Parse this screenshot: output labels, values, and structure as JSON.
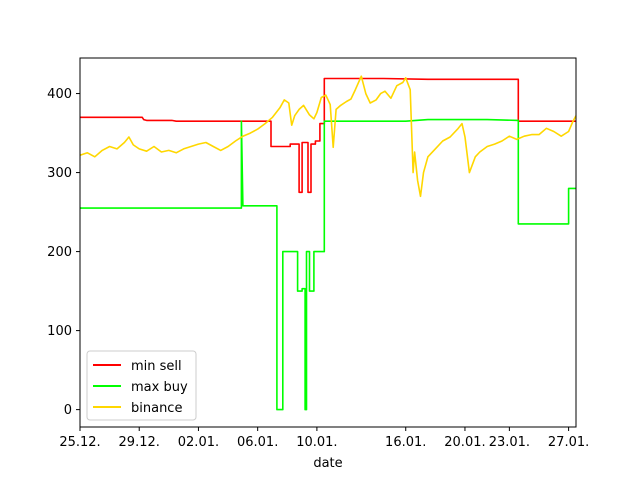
{
  "chart_data": {
    "type": "line",
    "xlabel": "date",
    "ylabel": "",
    "x_ticks": [
      "25.12.",
      "29.12.",
      "02.01.",
      "06.01.",
      "10.01.",
      "16.01.",
      "20.01.",
      "23.01.",
      "27.01."
    ],
    "x_tick_days": [
      0,
      4,
      8,
      12,
      16,
      22,
      26,
      29,
      33
    ],
    "xlim": [
      0,
      33.5
    ],
    "ylim": [
      -22,
      445
    ],
    "y_ticks": [
      0,
      100,
      200,
      300,
      400
    ],
    "grid": false,
    "legend_position": "lower-left",
    "series": [
      {
        "name": "min sell",
        "color": "#ff0000",
        "points": [
          [
            0,
            370
          ],
          [
            4.2,
            370
          ],
          [
            4.3,
            367
          ],
          [
            4.5,
            366
          ],
          [
            6.2,
            366
          ],
          [
            6.5,
            365
          ],
          [
            12.9,
            365
          ],
          [
            12.9,
            333
          ],
          [
            14.2,
            333
          ],
          [
            14.2,
            336
          ],
          [
            14.8,
            336
          ],
          [
            14.8,
            275
          ],
          [
            15.0,
            275
          ],
          [
            15.0,
            338
          ],
          [
            15.4,
            338
          ],
          [
            15.4,
            275
          ],
          [
            15.6,
            275
          ],
          [
            15.6,
            336
          ],
          [
            15.9,
            336
          ],
          [
            15.9,
            340
          ],
          [
            16.2,
            340
          ],
          [
            16.2,
            362
          ],
          [
            16.5,
            362
          ],
          [
            16.5,
            419
          ],
          [
            19.0,
            419
          ],
          [
            20.5,
            419
          ],
          [
            23.5,
            418
          ],
          [
            29.6,
            418
          ],
          [
            29.6,
            365
          ],
          [
            33.5,
            365
          ]
        ]
      },
      {
        "name": "max buy",
        "color": "#00ff00",
        "points": [
          [
            0,
            255
          ],
          [
            10.9,
            255
          ],
          [
            10.9,
            365
          ],
          [
            11.0,
            258
          ],
          [
            13.3,
            258
          ],
          [
            13.3,
            0
          ],
          [
            13.7,
            0
          ],
          [
            13.7,
            200
          ],
          [
            14.7,
            200
          ],
          [
            14.7,
            150
          ],
          [
            15.0,
            150
          ],
          [
            15.0,
            153
          ],
          [
            15.2,
            153
          ],
          [
            15.2,
            0
          ],
          [
            15.3,
            0
          ],
          [
            15.3,
            200
          ],
          [
            15.5,
            200
          ],
          [
            15.5,
            150
          ],
          [
            15.8,
            150
          ],
          [
            15.8,
            200
          ],
          [
            16.5,
            200
          ],
          [
            16.5,
            365
          ],
          [
            22.0,
            365
          ],
          [
            23.5,
            367
          ],
          [
            27.5,
            367
          ],
          [
            29.6,
            366
          ],
          [
            29.6,
            235
          ],
          [
            33.0,
            235
          ],
          [
            33.0,
            280
          ],
          [
            33.5,
            280
          ]
        ]
      },
      {
        "name": "binance",
        "color": "#ffd700",
        "points": [
          [
            0,
            322
          ],
          [
            0.5,
            325
          ],
          [
            1.0,
            320
          ],
          [
            1.5,
            328
          ],
          [
            2.0,
            333
          ],
          [
            2.5,
            330
          ],
          [
            3.0,
            338
          ],
          [
            3.3,
            345
          ],
          [
            3.6,
            335
          ],
          [
            4.0,
            330
          ],
          [
            4.5,
            327
          ],
          [
            5.0,
            333
          ],
          [
            5.5,
            326
          ],
          [
            6.0,
            328
          ],
          [
            6.5,
            325
          ],
          [
            7.0,
            330
          ],
          [
            7.5,
            333
          ],
          [
            8.0,
            336
          ],
          [
            8.5,
            338
          ],
          [
            9.0,
            333
          ],
          [
            9.5,
            328
          ],
          [
            10.0,
            333
          ],
          [
            10.5,
            340
          ],
          [
            11.0,
            346
          ],
          [
            11.5,
            350
          ],
          [
            12.0,
            355
          ],
          [
            12.5,
            362
          ],
          [
            13.0,
            370
          ],
          [
            13.5,
            382
          ],
          [
            13.8,
            392
          ],
          [
            14.1,
            388
          ],
          [
            14.3,
            360
          ],
          [
            14.5,
            372
          ],
          [
            14.8,
            380
          ],
          [
            15.1,
            385
          ],
          [
            15.5,
            373
          ],
          [
            15.8,
            368
          ],
          [
            16.0,
            376
          ],
          [
            16.3,
            395
          ],
          [
            16.6,
            398
          ],
          [
            16.9,
            386
          ],
          [
            17.1,
            332
          ],
          [
            17.3,
            380
          ],
          [
            17.6,
            385
          ],
          [
            18.0,
            390
          ],
          [
            18.3,
            393
          ],
          [
            18.6,
            405
          ],
          [
            19.0,
            422
          ],
          [
            19.3,
            400
          ],
          [
            19.6,
            388
          ],
          [
            20.0,
            392
          ],
          [
            20.3,
            400
          ],
          [
            20.6,
            403
          ],
          [
            21.0,
            394
          ],
          [
            21.4,
            410
          ],
          [
            21.8,
            414
          ],
          [
            22.0,
            420
          ],
          [
            22.3,
            405
          ],
          [
            22.5,
            300
          ],
          [
            22.6,
            326
          ],
          [
            22.8,
            290
          ],
          [
            23.0,
            270
          ],
          [
            23.2,
            300
          ],
          [
            23.5,
            320
          ],
          [
            24.0,
            330
          ],
          [
            24.5,
            340
          ],
          [
            25.0,
            345
          ],
          [
            25.5,
            355
          ],
          [
            25.8,
            362
          ],
          [
            26.0,
            345
          ],
          [
            26.3,
            300
          ],
          [
            26.7,
            320
          ],
          [
            27.0,
            326
          ],
          [
            27.5,
            333
          ],
          [
            28.0,
            336
          ],
          [
            28.5,
            340
          ],
          [
            29.0,
            346
          ],
          [
            29.5,
            342
          ],
          [
            30.0,
            346
          ],
          [
            30.5,
            348
          ],
          [
            31.0,
            348
          ],
          [
            31.5,
            356
          ],
          [
            32.0,
            352
          ],
          [
            32.5,
            346
          ],
          [
            33.0,
            352
          ],
          [
            33.3,
            365
          ],
          [
            33.5,
            372
          ]
        ]
      }
    ]
  }
}
